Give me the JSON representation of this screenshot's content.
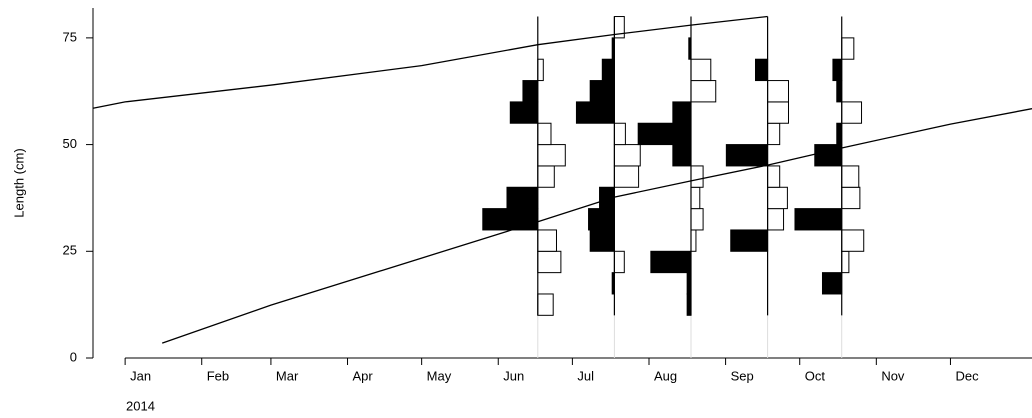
{
  "chart_data": {
    "type": "length_frequency",
    "y_label": "Length (cm)",
    "x_sublabel": "2014",
    "ylim": [
      0,
      82
    ],
    "yticks": [
      0,
      25,
      50,
      75
    ],
    "xlim": [
      -13,
      367
    ],
    "xticks": [
      {
        "value": 0,
        "label": "Jan"
      },
      {
        "value": 31,
        "label": "Feb"
      },
      {
        "value": 59,
        "label": "Mar"
      },
      {
        "value": 90,
        "label": "Apr"
      },
      {
        "value": 120,
        "label": "May"
      },
      {
        "value": 151,
        "label": "Jun"
      },
      {
        "value": 181,
        "label": "Jul"
      },
      {
        "value": 212,
        "label": "Aug"
      },
      {
        "value": 243,
        "label": "Sep"
      },
      {
        "value": 273,
        "label": "Oct"
      },
      {
        "value": 304,
        "label": "Nov"
      },
      {
        "value": 334,
        "label": "Dec"
      }
    ],
    "bins": [
      10,
      15,
      20,
      25,
      30,
      35,
      40,
      45,
      50,
      55,
      60,
      65,
      70,
      75,
      80
    ],
    "positive_color": "#ffffff",
    "negative_color": "#000000",
    "samples": [
      {
        "x": 167,
        "values": [
          0.28,
          0,
          0.42,
          0.34,
          -1,
          -0.56,
          0.3,
          0.5,
          0.24,
          -0.5,
          -0.27,
          0.1,
          0,
          0
        ]
      },
      {
        "x": 198,
        "values": [
          0,
          -0.04,
          0.18,
          -0.44,
          -0.47,
          -0.27,
          0.44,
          0.47,
          0.2,
          -0.69,
          -0.44,
          -0.22,
          -0.04,
          0.18
        ]
      },
      {
        "x": 229,
        "values": [
          -0.07,
          -0.07,
          -0.73,
          0.09,
          0.22,
          0.16,
          0.22,
          -0.33,
          -0.96,
          -0.33,
          0.45,
          0.36,
          -0.04,
          0
        ]
      },
      {
        "x": 260,
        "values": [
          0,
          0,
          0,
          -0.67,
          0.29,
          0.36,
          0.22,
          -0.75,
          0.22,
          0.38,
          0.38,
          -0.22,
          0,
          0
        ]
      },
      {
        "x": 290,
        "values": [
          0,
          -0.35,
          0.13,
          0.4,
          -0.85,
          0.33,
          0.31,
          -0.49,
          -0.09,
          0.36,
          -0.09,
          -0.16,
          0.22,
          0
        ]
      }
    ],
    "curves": [
      {
        "x": [
          -13,
          0,
          60,
          120,
          167,
          198,
          229,
          260
        ],
        "y": [
          58.5,
          60,
          64,
          68.5,
          73.4,
          75.8,
          78,
          80
        ]
      },
      {
        "x": [
          15,
          59,
          120,
          167,
          198,
          229,
          260,
          290,
          334,
          367
        ],
        "y": [
          3.5,
          12.4,
          23.4,
          31.9,
          37.7,
          41.5,
          45.2,
          49.2,
          54.8,
          58.4
        ]
      }
    ]
  }
}
